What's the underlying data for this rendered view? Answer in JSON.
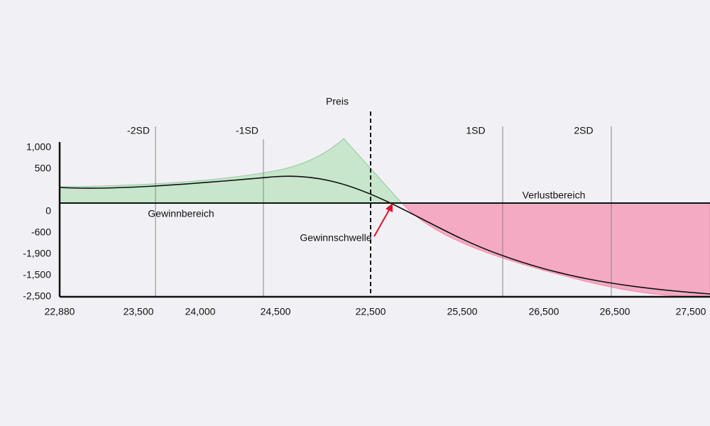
{
  "title": "Preis",
  "sd_labels": [
    "-2SD",
    "-1SD",
    "1SD",
    "2SD"
  ],
  "y_labels": [
    "1,000",
    "500",
    "0",
    "-600",
    "-1,900",
    "-1,500",
    "-2,500"
  ],
  "x_labels": [
    "22,880",
    "23,500",
    "24,000",
    "24,500",
    "22,500",
    "25,500",
    "26,500",
    "26,500",
    "27,500"
  ],
  "regions": {
    "profit": "Gewinnbereich",
    "loss": "Verlustbereich"
  },
  "annotation": "Gewinnschwelle"
}
